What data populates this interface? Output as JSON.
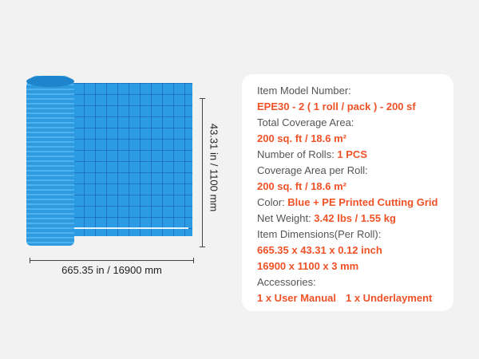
{
  "dimensions": {
    "length": "665.35 in / 16900 mm",
    "width": "43.31 in / 1100 mm"
  },
  "specs": {
    "model_label": "Item Model Number:",
    "model_value": "EPE30 - 2 ( 1 roll / pack ) - 200 sf",
    "coverage_label": "Total Coverage Area:",
    "coverage_value": "200 sq. ft / 18.6 m²",
    "rolls_label": "Number of Rolls: ",
    "rolls_value": "1 PCS",
    "per_roll_label": "Coverage Area per Roll:",
    "per_roll_value": "200 sq. ft / 18.6 m²",
    "color_label": "Color: ",
    "color_value": "Blue + PE Printed Cutting Grid",
    "weight_label": "Net Weight: ",
    "weight_value": "3.42 lbs / 1.55 kg",
    "dims_label": "Item Dimensions(Per Roll):",
    "dims_inch": "665.35 x 43.31 x 0.12 inch",
    "dims_mm": "16900 x 1100 x 3 mm",
    "acc_label": "Accessories:",
    "acc_1": "1 x User Manual",
    "acc_2": "1 x Underlayment"
  },
  "colors": {
    "accent": "#ef5227",
    "product": "#2b9be3"
  }
}
